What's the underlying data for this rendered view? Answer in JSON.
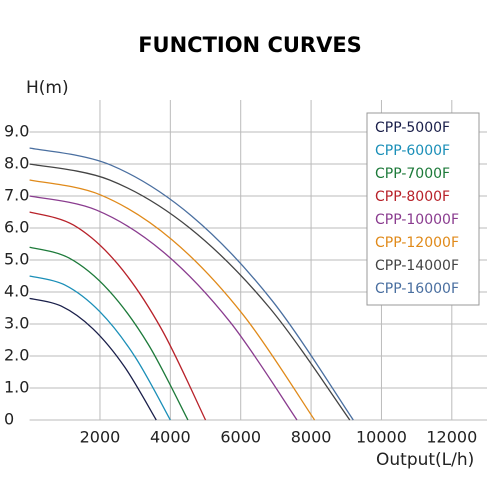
{
  "chart_data": {
    "type": "line",
    "title": "FUNCTION CURVES",
    "y_label": "H(m)",
    "x_label": "Output(L/h)",
    "xlim": [
      0,
      13000
    ],
    "ylim": [
      0,
      10
    ],
    "xticks": [
      2000,
      4000,
      6000,
      8000,
      10000,
      12000
    ],
    "yticks": [
      0,
      {
        "value": 1,
        "label": "1.0"
      },
      {
        "value": 2,
        "label": "2.0"
      },
      {
        "value": 3,
        "label": "3.0"
      },
      {
        "value": 4,
        "label": "4.0"
      },
      {
        "value": 5,
        "label": "5.0"
      },
      {
        "value": 6,
        "label": "6.0"
      },
      {
        "value": 7,
        "label": "7.0"
      },
      {
        "value": 8,
        "label": "8.0"
      },
      {
        "value": 9,
        "label": "9.0"
      }
    ],
    "grid": true,
    "legend": "upper right",
    "series": [
      {
        "name": "CPP-5000F",
        "color": "#1a1f4a",
        "x": [
          0,
          900,
          1800,
          2700,
          3600
        ],
        "values": [
          3.8,
          3.56,
          2.85,
          1.66,
          0
        ]
      },
      {
        "name": "CPP-6000F",
        "color": "#1b8fb8",
        "x": [
          0,
          1000,
          2000,
          3000,
          4000
        ],
        "values": [
          4.5,
          4.22,
          3.38,
          1.97,
          0
        ]
      },
      {
        "name": "CPP-7000F",
        "color": "#1d7a3a",
        "x": [
          0,
          1125,
          2250,
          3375,
          4500
        ],
        "values": [
          5.4,
          5.06,
          4.05,
          2.36,
          0
        ]
      },
      {
        "name": "CPP-8000F",
        "color": "#b8222a",
        "x": [
          0,
          1250,
          2500,
          3750,
          5000
        ],
        "values": [
          6.5,
          6.09,
          4.88,
          2.84,
          0
        ]
      },
      {
        "name": "CPP-10000F",
        "color": "#8a3c8f",
        "x": [
          0,
          1900,
          3800,
          5700,
          7600
        ],
        "values": [
          7.0,
          6.56,
          5.25,
          3.06,
          0
        ]
      },
      {
        "name": "CPP-12000F",
        "color": "#e08a1a",
        "x": [
          0,
          2025,
          4050,
          6075,
          8100
        ],
        "values": [
          7.5,
          7.03,
          5.63,
          3.28,
          0
        ]
      },
      {
        "name": "CPP-14000F",
        "color": "#444444",
        "x": [
          0,
          2275,
          4550,
          6825,
          9100
        ],
        "values": [
          8.0,
          7.5,
          6.0,
          3.5,
          0
        ]
      },
      {
        "name": "CPP-16000F",
        "color": "#4a6fa0",
        "x": [
          0,
          2300,
          4600,
          6900,
          9200
        ],
        "values": [
          8.5,
          7.97,
          6.38,
          3.72,
          0
        ]
      }
    ]
  }
}
